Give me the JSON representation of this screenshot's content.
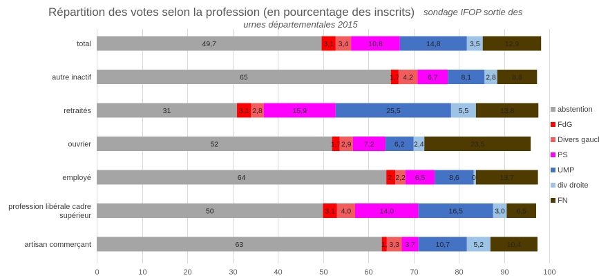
{
  "chart_data": {
    "type": "bar",
    "orientation": "horizontal",
    "stacked": true,
    "title": "Répartition des votes selon la profession (en pourcentage des inscrits)",
    "subtitle": "sondage IFOP sortie des urnes départementales 2015",
    "xlim": [
      0,
      100
    ],
    "xticks": [
      0,
      10,
      20,
      30,
      40,
      50,
      60,
      70,
      80,
      90,
      100
    ],
    "grid": true,
    "legend_position": "right",
    "categories": [
      "total",
      "autre inactif",
      "retraités",
      "ouvrier",
      "employé",
      "profession libérale cadre supérieur",
      "artisan commerçant"
    ],
    "category_lines": [
      [
        "total"
      ],
      [
        "autre inactif"
      ],
      [
        "retraités"
      ],
      [
        "ouvrier"
      ],
      [
        "employé"
      ],
      [
        "profession libérale cadre",
        "supérieur"
      ],
      [
        "artisan commerçant"
      ]
    ],
    "series": [
      {
        "name": "abstention",
        "color": "#a5a5a5",
        "values": [
          49.7,
          65,
          31,
          52,
          64,
          50,
          63
        ],
        "labels": [
          "49,7",
          "65",
          "31",
          "52",
          "64",
          "50",
          "63"
        ]
      },
      {
        "name": "FdG",
        "color": "#ff0000",
        "values": [
          3.1,
          1.7,
          3.1,
          1.7,
          2.0,
          3.1,
          1.1
        ],
        "labels": [
          "3,1",
          "1,7",
          "3,1",
          "1,7",
          "2,",
          "3,1",
          "1,"
        ]
      },
      {
        "name": "Divers gauche",
        "color": "#f25c5c",
        "values": [
          3.4,
          4.2,
          2.8,
          2.9,
          2.2,
          4.0,
          3.3
        ],
        "labels": [
          "3,4",
          "4,2",
          "2,8",
          "2,9",
          "2,2",
          "4,0",
          "3,3"
        ]
      },
      {
        "name": "PS",
        "color": "#ff00ff",
        "values": [
          10.8,
          6.7,
          15.9,
          7.2,
          6.5,
          14.0,
          3.7
        ],
        "labels": [
          "10,8",
          "6,7",
          "15,9",
          "7,2",
          "6,5",
          "14,0",
          "3,7"
        ]
      },
      {
        "name": "UMP",
        "color": "#4472c4",
        "values": [
          14.8,
          8.1,
          25.5,
          6.2,
          8.6,
          16.5,
          10.7
        ],
        "labels": [
          "14,8",
          "8,1",
          "25,5",
          "6,2",
          "8,6",
          "16,5",
          "10,7"
        ]
      },
      {
        "name": "div droite",
        "color": "#9dc3e6",
        "values": [
          3.5,
          2.8,
          5.5,
          2.4,
          0.5,
          3.0,
          5.2
        ],
        "labels": [
          "3,5",
          "2,8",
          "5,5",
          "2,4",
          "0,",
          "3,0",
          "5,2"
        ]
      },
      {
        "name": "FN",
        "color": "#4f3a00",
        "values": [
          12.9,
          8.8,
          13.8,
          23.5,
          13.7,
          6.5,
          10.4
        ],
        "labels": [
          "12,9",
          "8,8",
          "13,8",
          "23,5",
          "13,7",
          "6,5",
          "10,4"
        ]
      }
    ]
  }
}
